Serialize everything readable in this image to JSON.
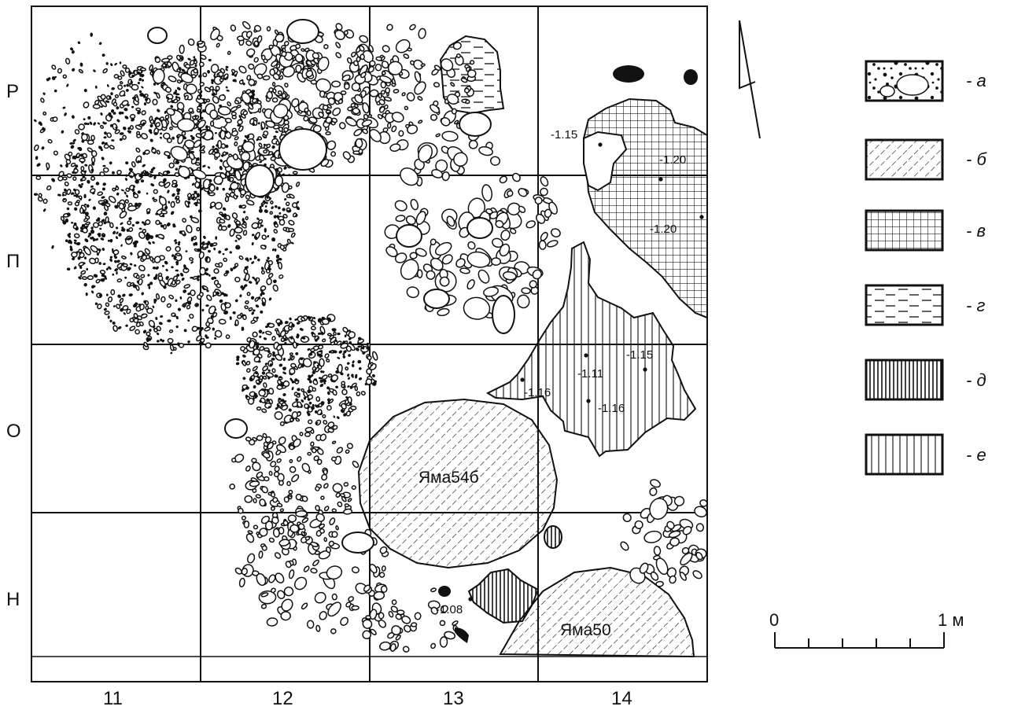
{
  "plan": {
    "rows": [
      "Р",
      "П",
      "О",
      "Н"
    ],
    "columns": [
      "11",
      "12",
      "13",
      "14"
    ],
    "pits": [
      "Яма54б",
      "Яма50"
    ],
    "elevations": [
      "-1.15",
      "-1.20",
      "-1.20",
      "-1.15",
      "-1.11",
      "-1.16",
      "-1.16",
      "-1.08"
    ]
  },
  "legend": [
    {
      "key": "a",
      "label": "- а",
      "fill": "stones"
    },
    {
      "key": "b",
      "label": "- б",
      "fill": "diagonal-hatch"
    },
    {
      "key": "v",
      "label": "- в",
      "fill": "grid"
    },
    {
      "key": "g",
      "label": "- г",
      "fill": "dashes"
    },
    {
      "key": "d",
      "label": "- д",
      "fill": "dense-vertical"
    },
    {
      "key": "e",
      "label": "- е",
      "fill": "vertical"
    }
  ],
  "scale": {
    "start": "0",
    "end": "1 м"
  },
  "north_arrow": "north-arrow"
}
